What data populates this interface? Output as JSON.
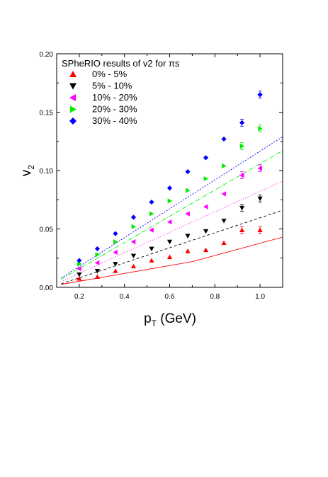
{
  "chart_data": {
    "type": "scatter",
    "title": "SPheRIO results of v2 for πs",
    "xlabel": {
      "main": "p",
      "sub": "T",
      "unit": " (GeV)"
    },
    "ylabel": {
      "main": "v",
      "sub": "2"
    },
    "xlim": [
      0.1,
      1.1
    ],
    "ylim": [
      0.0,
      0.2
    ],
    "xticks": [
      0.2,
      0.4,
      0.6,
      0.8,
      1.0
    ],
    "xtick_labels": [
      "0.2",
      "0.4",
      "0.6",
      "0.8",
      "1.0"
    ],
    "yticks": [
      0.0,
      0.05,
      0.1,
      0.15,
      0.2
    ],
    "ytick_labels": [
      "0.00",
      "0.05",
      "0.10",
      "0.15",
      "0.20"
    ],
    "grid": false,
    "legend_position": "top-left",
    "x": [
      0.2,
      0.28,
      0.36,
      0.44,
      0.52,
      0.6,
      0.68,
      0.76,
      0.84,
      0.92,
      1.0
    ],
    "series": [
      {
        "name": "0% - 5%",
        "marker": "triangle-up",
        "color": "#ff0000",
        "values": [
          0.0075,
          0.009,
          0.014,
          0.018,
          0.023,
          0.026,
          0.031,
          0.032,
          0.038,
          0.049,
          0.049
        ]
      },
      {
        "name": "5% - 10%",
        "marker": "triangle-down",
        "color": "#000000",
        "values": [
          0.011,
          0.014,
          0.02,
          0.027,
          0.033,
          0.039,
          0.044,
          0.048,
          0.057,
          0.068,
          0.076
        ]
      },
      {
        "name": "10% - 20%",
        "marker": "triangle-left",
        "color": "#ff00ff",
        "values": [
          0.016,
          0.021,
          0.03,
          0.039,
          0.049,
          0.056,
          0.063,
          0.069,
          0.08,
          0.096,
          0.102
        ]
      },
      {
        "name": "20% - 30%",
        "marker": "triangle-right",
        "color": "#00ee00",
        "values": [
          0.02,
          0.028,
          0.039,
          0.052,
          0.063,
          0.074,
          0.083,
          0.093,
          0.104,
          0.121,
          0.136
        ]
      },
      {
        "name": "30% - 40%",
        "marker": "diamond",
        "color": "#0000ff",
        "values": [
          0.023,
          0.033,
          0.046,
          0.06,
          0.073,
          0.085,
          0.099,
          0.111,
          0.127,
          0.141,
          0.165
        ]
      }
    ],
    "lines": [
      {
        "color": "#ff0000",
        "dash": "",
        "x": [
          0.12,
          0.7,
          1.1
        ],
        "y": [
          0.0025,
          0.022,
          0.043
        ]
      },
      {
        "color": "#000000",
        "dash": "4,3",
        "x": [
          0.12,
          1.1
        ],
        "y": [
          0.003,
          0.066
        ]
      },
      {
        "color": "#ff00ff",
        "dash": "1,2",
        "x": [
          0.12,
          1.1
        ],
        "y": [
          0.005,
          0.091
        ]
      },
      {
        "color": "#00ee00",
        "dash": "6,2,1,2",
        "x": [
          0.12,
          1.1
        ],
        "y": [
          0.007,
          0.117
        ]
      },
      {
        "color": "#0000ff",
        "dash": "2,2",
        "x": [
          0.12,
          1.1
        ],
        "y": [
          0.008,
          0.129
        ]
      }
    ]
  }
}
